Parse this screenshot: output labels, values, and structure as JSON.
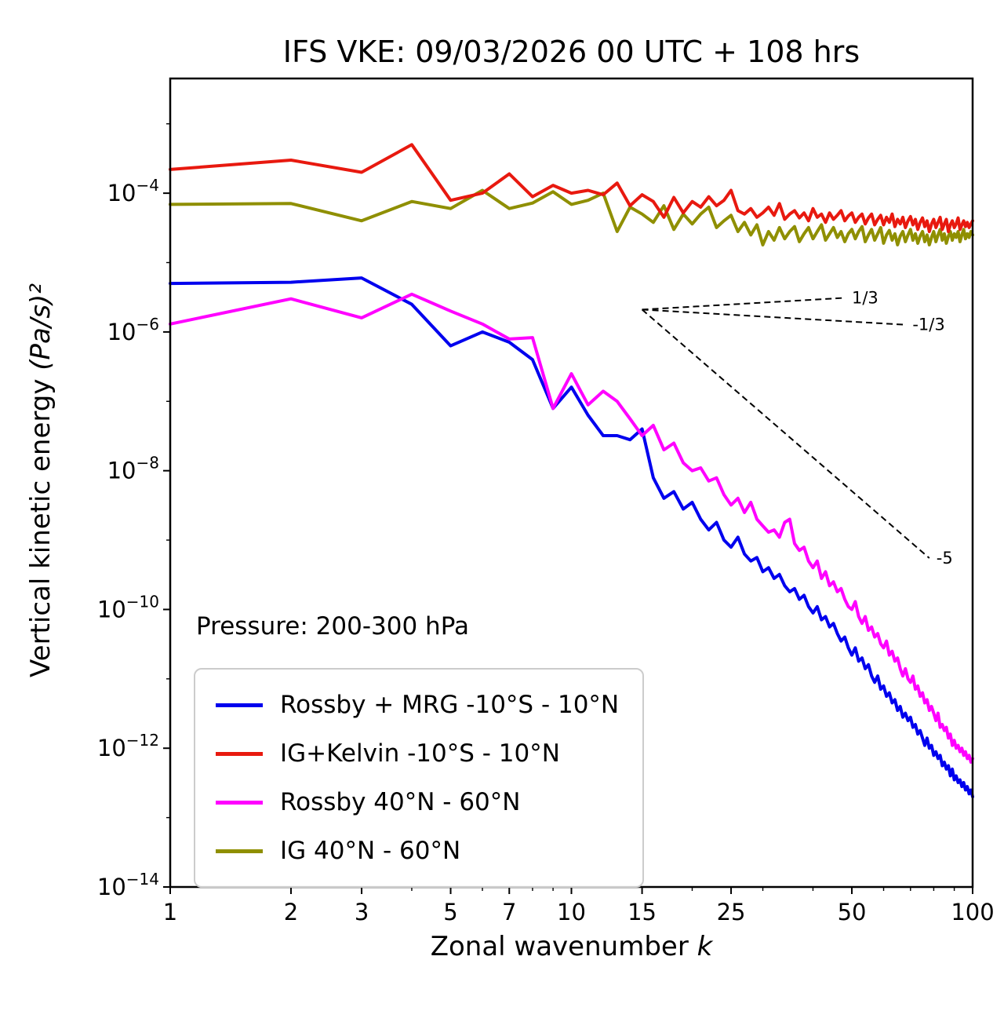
{
  "title": "IFS VKE: 09/03/2026 00 UTC + 108 hrs",
  "xlabel_prefix": "Zonal wavenumber ",
  "xlabel_math": "k",
  "ylabel_prefix": "Vertical kinetic energy ",
  "ylabel_math": "(Pa/s)²",
  "annotation": "Pressure: 200-300 hPa",
  "chart_data": {
    "type": "line",
    "x_scale": "log",
    "y_scale": "log",
    "xlim": [
      1,
      100
    ],
    "ylim": [
      1e-14,
      0.0045
    ],
    "grid": false,
    "legend_position": "lower left",
    "x_ticks": [
      1,
      2,
      3,
      5,
      7,
      10,
      15,
      25,
      50,
      100
    ],
    "x_minor_ticks": [
      4,
      6,
      8,
      9,
      20,
      30,
      40,
      60,
      70,
      80,
      90
    ],
    "y_tick_exponents": [
      -4,
      -6,
      -8,
      -10,
      -12,
      -14
    ],
    "y_minor_tick_exponents": [
      -3,
      -5,
      -7,
      -9,
      -11,
      -13
    ],
    "x_min": 1,
    "x_step": 1,
    "series": [
      {
        "name": "Rossby + MRG -10°S - 10°N",
        "color": "#0000ee",
        "values": [
          5e-06,
          5.2e-06,
          6e-06,
          2.5e-06,
          6.3e-07,
          1e-06,
          7.1e-07,
          4e-07,
          7.9e-08,
          1.6e-07,
          6.3e-08,
          3.2e-08,
          3.2e-08,
          2.8e-08,
          4e-08,
          7.9e-09,
          4e-09,
          5e-09,
          2.8e-09,
          3.5e-09,
          2e-09,
          1.4e-09,
          1.8e-09,
          1e-09,
          7.9e-10,
          1.1e-09,
          6.3e-10,
          5e-10,
          5.6e-10,
          3.5e-10,
          4e-10,
          2.8e-10,
          3.2e-10,
          2.2e-10,
          1.8e-10,
          2e-10,
          1.4e-10,
          1.6e-10,
          1.1e-10,
          8.9e-11,
          1.1e-10,
          7.1e-11,
          7.9e-11,
          5.6e-11,
          6.3e-11,
          4.5e-11,
          3.5e-11,
          4e-11,
          2.8e-11,
          2.2e-11,
          2.8e-11,
          1.8e-11,
          2e-11,
          1.4e-11,
          1.6e-11,
          1.1e-11,
          8.9e-12,
          1.1e-11,
          7.1e-12,
          7.9e-12,
          5.6e-12,
          6.3e-12,
          4.5e-12,
          5e-12,
          3.5e-12,
          4e-12,
          2.8e-12,
          3.2e-12,
          2.5e-12,
          2.8e-12,
          2e-12,
          2.2e-12,
          1.6e-12,
          1.8e-12,
          1.4e-12,
          1.1e-12,
          1.4e-12,
          1e-12,
          1.1e-12,
          7.9e-13,
          8.9e-13,
          7.1e-13,
          7.9e-13,
          5.6e-13,
          6.3e-13,
          5e-13,
          5.6e-13,
          4e-13,
          5e-13,
          3.5e-13,
          4e-13,
          3.2e-13,
          3.5e-13,
          2.8e-13,
          3.2e-13,
          2.5e-13,
          2.8e-13,
          2.2e-13,
          2.5e-13,
          2e-13
        ]
      },
      {
        "name": "IG+Kelvin -10°S - 10°N",
        "color": "#e8190f",
        "values": [
          0.00022,
          0.0003,
          0.0002,
          0.0005,
          7.9e-05,
          0.0001,
          0.00019,
          8.9e-05,
          0.00013,
          0.0001,
          0.00011,
          9.5e-05,
          0.00014,
          6.6e-05,
          9.5e-05,
          7.6e-05,
          4.5e-05,
          8.7e-05,
          5.2e-05,
          7.6e-05,
          6.3e-05,
          8.9e-05,
          6.6e-05,
          7.9e-05,
          0.00011,
          5.6e-05,
          5e-05,
          6e-05,
          4.5e-05,
          5.2e-05,
          6.3e-05,
          4.8e-05,
          7.1e-05,
          4.2e-05,
          5e-05,
          5.6e-05,
          4.4e-05,
          5.2e-05,
          4e-05,
          6e-05,
          4.5e-05,
          5e-05,
          3.8e-05,
          5.2e-05,
          4.2e-05,
          4.8e-05,
          5.6e-05,
          4e-05,
          4.7e-05,
          5.2e-05,
          3.8e-05,
          4.5e-05,
          5e-05,
          3.6e-05,
          4.4e-05,
          5e-05,
          3.5e-05,
          4.2e-05,
          4.8e-05,
          3.5e-05,
          4.5e-05,
          3.8e-05,
          5e-05,
          3.3e-05,
          4.2e-05,
          3.6e-05,
          4.5e-05,
          3.2e-05,
          4e-05,
          4.6e-05,
          3.5e-05,
          4.2e-05,
          3e-05,
          3.8e-05,
          4.4e-05,
          3.3e-05,
          4e-05,
          2.8e-05,
          3.6e-05,
          4.2e-05,
          3.2e-05,
          3.8e-05,
          4.5e-05,
          3e-05,
          3.6e-05,
          4.2e-05,
          2.8e-05,
          3.5e-05,
          4e-05,
          3.2e-05,
          3.6e-05,
          4.4e-05,
          3e-05,
          3.5e-05,
          4e-05,
          3.3e-05,
          3.8e-05,
          3.2e-05,
          3.6e-05,
          4e-05
        ]
      },
      {
        "name": "Rossby 40°N - 60°N",
        "color": "#ff00ff",
        "values": [
          1.3e-06,
          3e-06,
          1.6e-06,
          3.5e-06,
          2e-06,
          1.3e-06,
          7.9e-07,
          8.3e-07,
          7.9e-08,
          2.5e-07,
          8.9e-08,
          1.4e-07,
          1e-07,
          5.6e-08,
          3.2e-08,
          4.5e-08,
          2e-08,
          2.5e-08,
          1.3e-08,
          1e-08,
          1.1e-08,
          7.1e-09,
          7.9e-09,
          4.5e-09,
          3.2e-09,
          4e-09,
          2.5e-09,
          3.5e-09,
          2e-09,
          1.6e-09,
          1.3e-09,
          1.4e-09,
          1.1e-09,
          1.8e-09,
          2e-09,
          8.9e-10,
          7.1e-10,
          7.9e-10,
          5e-10,
          4e-10,
          5e-10,
          2.8e-10,
          3.5e-10,
          2.2e-10,
          2.5e-10,
          1.8e-10,
          2e-10,
          1.4e-10,
          1.1e-10,
          1e-10,
          1.3e-10,
          7.9e-11,
          6.3e-11,
          7.9e-11,
          5e-11,
          5.6e-11,
          4e-11,
          4.5e-11,
          3.2e-11,
          2.8e-11,
          3.5e-11,
          2.2e-11,
          2.5e-11,
          1.8e-11,
          2e-11,
          1.4e-11,
          1.1e-11,
          1.4e-11,
          1e-11,
          8.9e-12,
          1.1e-11,
          7.1e-12,
          7.9e-12,
          5.6e-12,
          6.3e-12,
          4.5e-12,
          5e-12,
          3.5e-12,
          4e-12,
          3.2e-12,
          2.5e-12,
          3.2e-12,
          2e-12,
          2.2e-12,
          1.8e-12,
          2e-12,
          1.4e-12,
          1.6e-12,
          1.1e-12,
          1.3e-12,
          1e-12,
          1.1e-12,
          8.9e-13,
          1e-12,
          7.9e-13,
          8.9e-13,
          7.1e-13,
          7.9e-13,
          6.3e-13,
          7.1e-13
        ]
      },
      {
        "name": "IG 40°N - 60°N",
        "color": "#8f8f00",
        "values": [
          6.9e-05,
          7.1e-05,
          4e-05,
          7.6e-05,
          6e-05,
          0.00011,
          6e-05,
          7.2e-05,
          0.000105,
          6.9e-05,
          7.9e-05,
          0.0001,
          2.8e-05,
          6.3e-05,
          5e-05,
          3.8e-05,
          6.6e-05,
          3e-05,
          5e-05,
          3.6e-05,
          5e-05,
          6.3e-05,
          3.2e-05,
          4e-05,
          4.8e-05,
          2.8e-05,
          3.8e-05,
          2.5e-05,
          3.5e-05,
          1.8e-05,
          2.8e-05,
          2.1e-05,
          3.2e-05,
          2.2e-05,
          2.8e-05,
          3.3e-05,
          2e-05,
          2.6e-05,
          3.2e-05,
          2.2e-05,
          2.8e-05,
          3.5e-05,
          2.1e-05,
          2.6e-05,
          3.2e-05,
          2.3e-05,
          2.8e-05,
          2e-05,
          2.6e-05,
          3e-05,
          2.2e-05,
          2.8e-05,
          3.3e-05,
          2e-05,
          2.5e-05,
          3e-05,
          2.1e-05,
          2.6e-05,
          3.2e-05,
          1.9e-05,
          2.5e-05,
          2.9e-05,
          2.1e-05,
          2.6e-05,
          1.8e-05,
          2.4e-05,
          2.8e-05,
          2e-05,
          2.5e-05,
          3e-05,
          2.1e-05,
          2.6e-05,
          1.9e-05,
          2.4e-05,
          2.8e-05,
          2e-05,
          2.5e-05,
          1.8e-05,
          2.3e-05,
          2.8e-05,
          2e-05,
          2.5e-05,
          3e-05,
          2.1e-05,
          2.6e-05,
          1.9e-05,
          2.4e-05,
          2.8e-05,
          2.1e-05,
          2.6e-05,
          2.3e-05,
          2.8e-05,
          2e-05,
          2.5e-05,
          3e-05,
          2.2e-05,
          2.6e-05,
          2.3e-05,
          2.8e-05,
          2.5e-05
        ]
      }
    ],
    "reference_lines": [
      {
        "label": "1/3",
        "slope": 0.333,
        "x1": 15,
        "y1": 2.1e-06,
        "x2": 48,
        "y2": 3.1e-06
      },
      {
        "label": "-1/3",
        "slope": -0.333,
        "x1": 15,
        "y1": 2.1e-06,
        "x2": 68,
        "y2": 1.27e-06
      },
      {
        "label": "-5",
        "slope": -5,
        "x1": 15,
        "y1": 2.1e-06,
        "x2": 78,
        "y2": 5.5e-10
      }
    ]
  }
}
